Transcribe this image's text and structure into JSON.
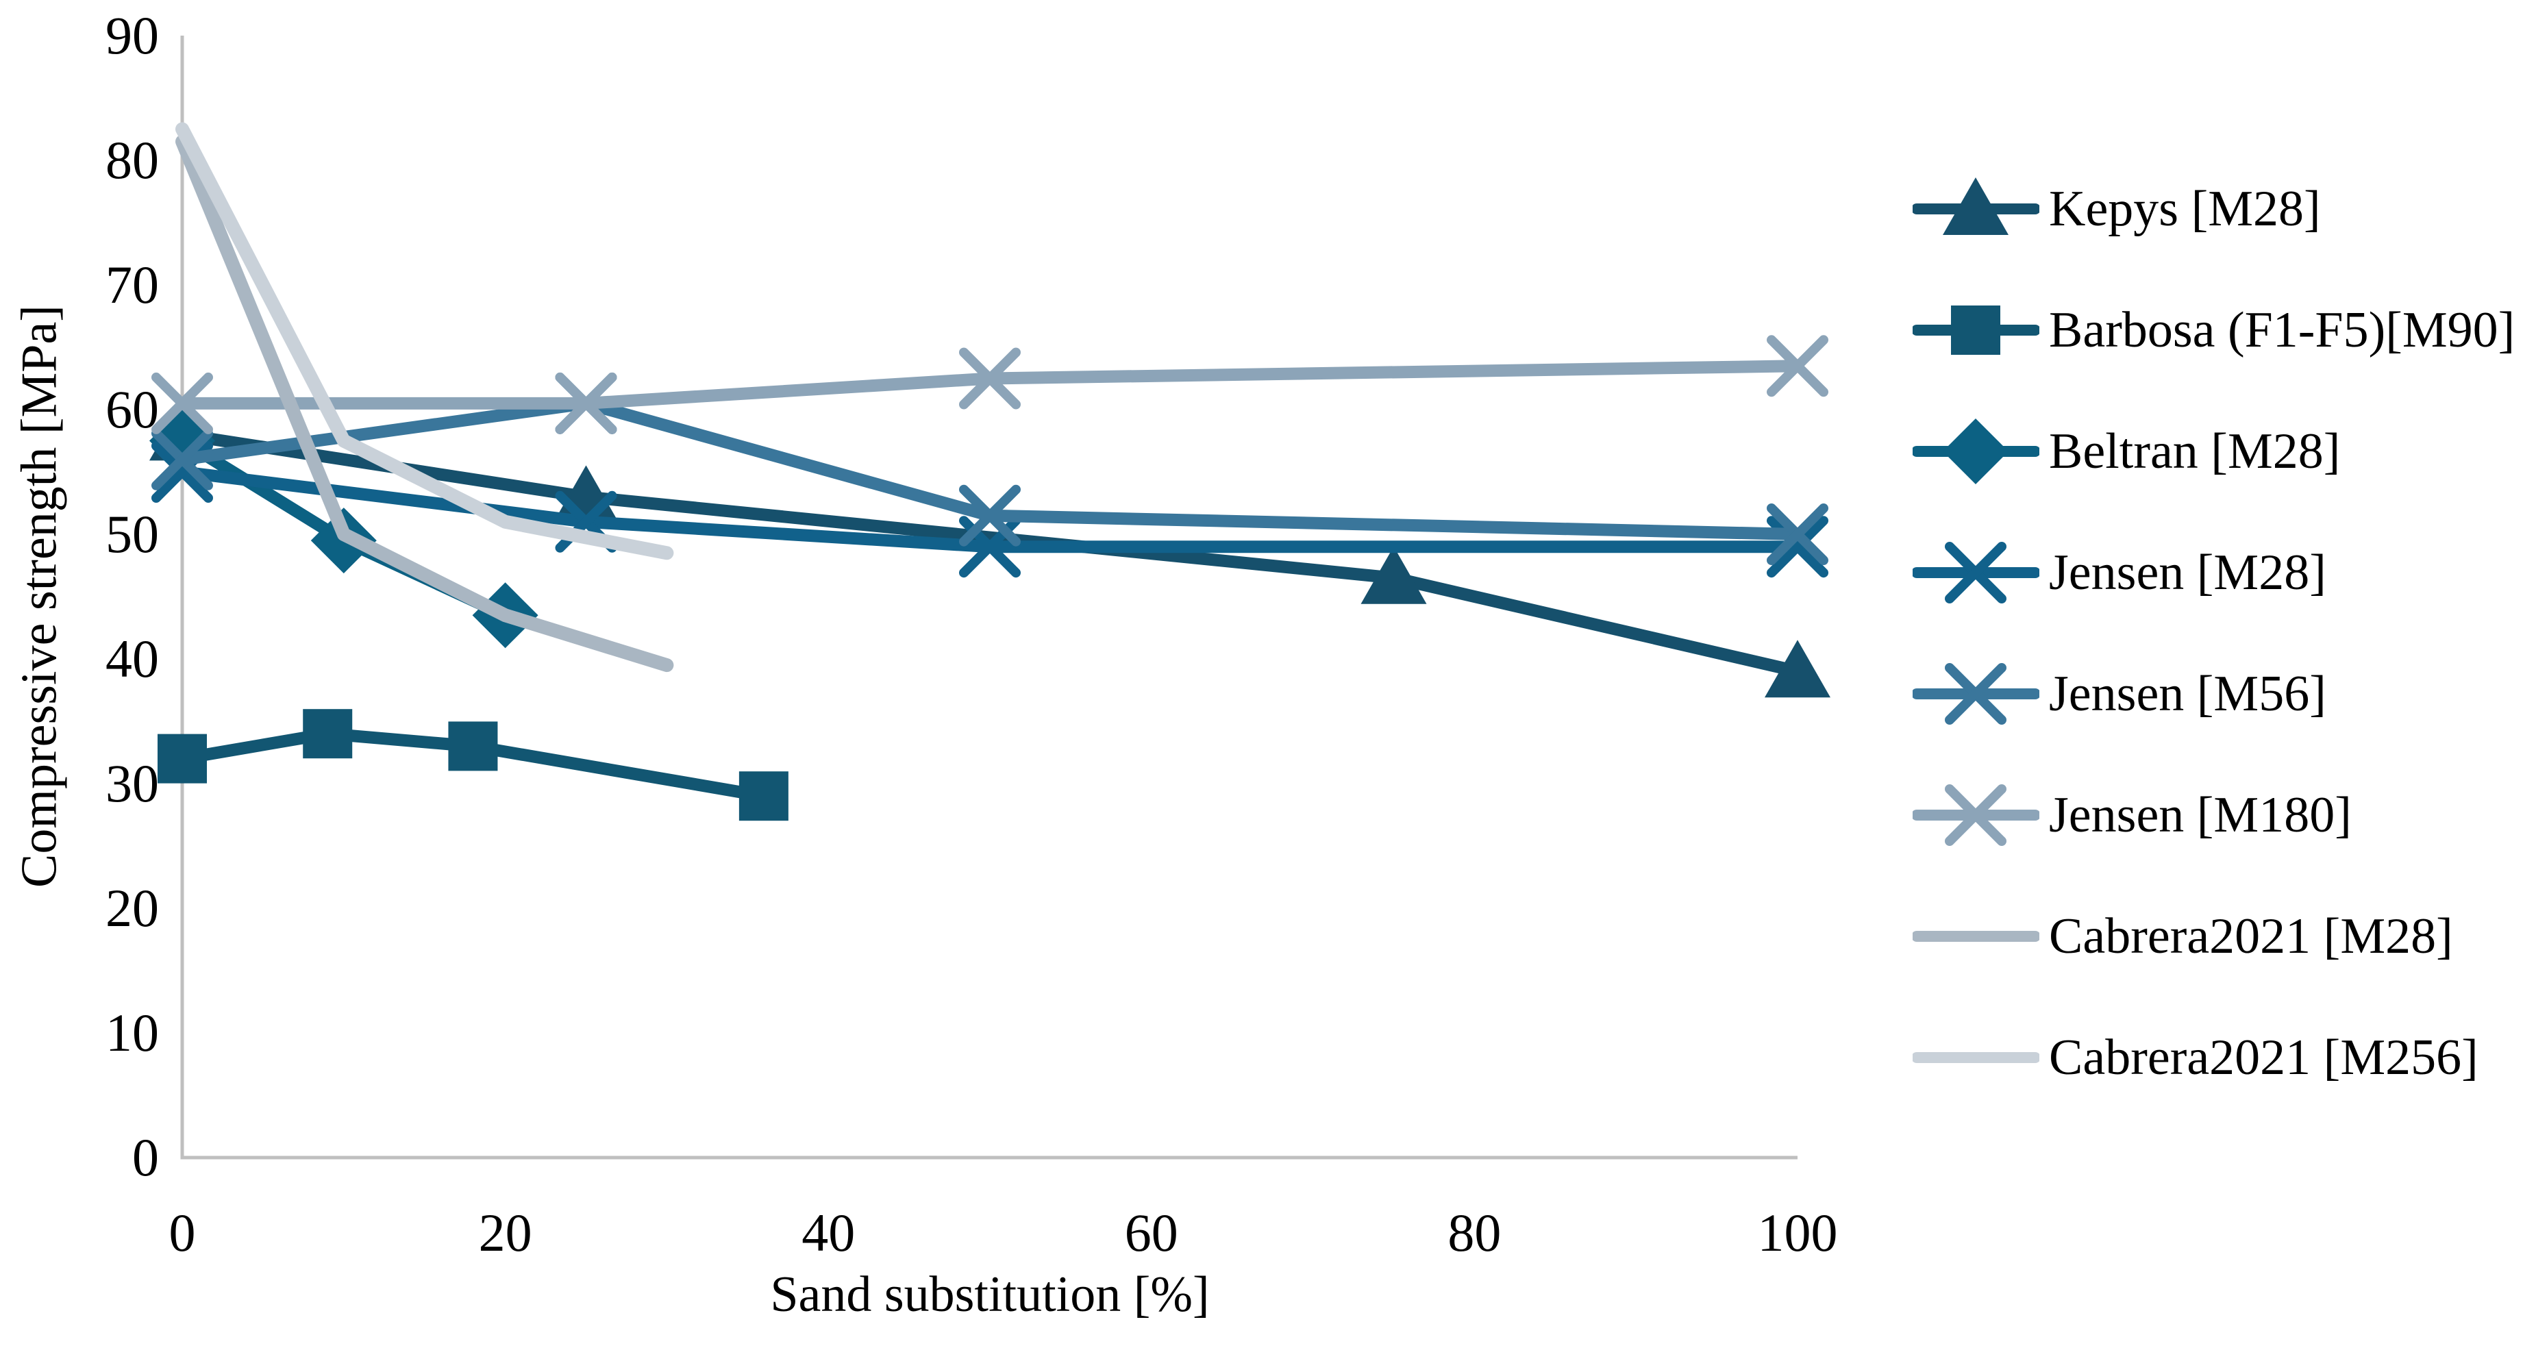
{
  "chart_data": {
    "type": "line",
    "title": "",
    "xlabel": "Sand substitution [%]",
    "ylabel": "Compressive strength [MPa]",
    "xlim": [
      0,
      100
    ],
    "ylim": [
      0,
      90
    ],
    "x_ticks": [
      0,
      20,
      40,
      60,
      80,
      100
    ],
    "y_ticks": [
      0,
      10,
      20,
      30,
      40,
      50,
      60,
      70,
      80,
      90
    ],
    "grid": false,
    "legend_position": "right",
    "axis_color": "#BFBFBF",
    "series": [
      {
        "name": "Kepys [M28]",
        "marker": "triangle",
        "color": "#16506C",
        "width": 18,
        "x": [
          0,
          25,
          75,
          100
        ],
        "y": [
          58,
          53,
          46.5,
          39
        ]
      },
      {
        "name": "Barbosa (F1-F5)[M90]",
        "marker": "square",
        "color": "#125672",
        "width": 18,
        "x": [
          0,
          9,
          18,
          36
        ],
        "y": [
          32,
          34,
          33,
          29
        ]
      },
      {
        "name": "Beltran [M28]",
        "marker": "diamond",
        "color": "#0C6183",
        "width": 18,
        "x": [
          0,
          10,
          20
        ],
        "y": [
          57.5,
          49.5,
          43.5
        ]
      },
      {
        "name": "Jensen [M28]",
        "marker": "x",
        "color": "#11618B",
        "width": 18,
        "x": [
          0,
          25,
          50,
          100
        ],
        "y": [
          55,
          51,
          49,
          49
        ]
      },
      {
        "name": "Jensen [M56]",
        "marker": "x",
        "color": "#3A769B",
        "width": 18,
        "x": [
          0,
          25,
          50,
          100
        ],
        "y": [
          56,
          60.5,
          51.5,
          50
        ]
      },
      {
        "name": "Jensen [M180]",
        "marker": "x",
        "color": "#8CA4B8",
        "width": 18,
        "x": [
          0,
          25,
          50,
          100
        ],
        "y": [
          60.5,
          60.5,
          62.5,
          63.5
        ]
      },
      {
        "name": "Cabrera2021 [M28]",
        "marker": "none",
        "color": "#A9B6C2",
        "width": 20,
        "x": [
          0,
          10,
          20,
          30
        ],
        "y": [
          81.5,
          50,
          43.5,
          39.5
        ]
      },
      {
        "name": "Cabrera2021 [M256]",
        "marker": "none",
        "color": "#C9D1D9",
        "width": 20,
        "x": [
          0,
          10,
          20,
          30
        ],
        "y": [
          82.5,
          57.5,
          51,
          48.5
        ]
      }
    ]
  }
}
